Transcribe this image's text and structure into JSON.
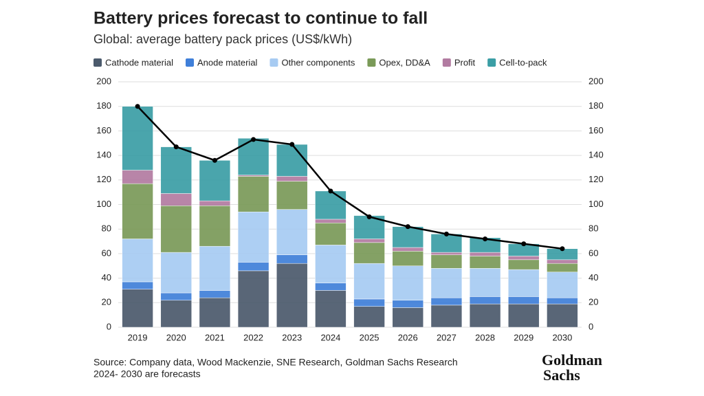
{
  "chart_data": {
    "type": "bar",
    "stacked": true,
    "title": "Battery prices forecast to continue to fall",
    "subtitle": "Global: average battery pack prices (US$/kWh)",
    "categories": [
      "2019",
      "2020",
      "2021",
      "2022",
      "2023",
      "2024",
      "2025",
      "2026",
      "2027",
      "2028",
      "2029",
      "2030"
    ],
    "series": [
      {
        "name": "Cathode material",
        "color": "#4b5a6c",
        "values": [
          31,
          22,
          24,
          46,
          52,
          30,
          17,
          16,
          18,
          19,
          19,
          19
        ]
      },
      {
        "name": "Anode material",
        "color": "#3f7fd9",
        "values": [
          6,
          6,
          6,
          7,
          7,
          6,
          6,
          6,
          6,
          6,
          6,
          5
        ]
      },
      {
        "name": "Other components",
        "color": "#a7cbf2",
        "values": [
          35,
          33,
          36,
          41,
          37,
          31,
          29,
          28,
          24,
          23,
          22,
          21
        ]
      },
      {
        "name": "Opex, DD&A",
        "color": "#7a9a58",
        "values": [
          45,
          38,
          33,
          29,
          23,
          18,
          17,
          12,
          11,
          10,
          8,
          7
        ]
      },
      {
        "name": "Profit",
        "color": "#b27ba1",
        "values": [
          11,
          10,
          4,
          1,
          4,
          3,
          3,
          3,
          2,
          3,
          3,
          3
        ]
      },
      {
        "name": "Cell-to-pack",
        "color": "#3b9ea5",
        "values": [
          52,
          38,
          33,
          30,
          26,
          23,
          19,
          17,
          15,
          12,
          10,
          9
        ]
      }
    ],
    "line": {
      "axis": "y2",
      "color": "#000000",
      "values": [
        180,
        147,
        136,
        153,
        149,
        111,
        90,
        82,
        76,
        72,
        68,
        64
      ]
    },
    "ylim": [
      0,
      200
    ],
    "yticks": [
      0,
      20,
      40,
      60,
      80,
      100,
      120,
      140,
      160,
      180,
      200
    ],
    "y2lim": [
      0,
      200
    ],
    "y2ticks": [
      0,
      20,
      40,
      60,
      80,
      100,
      120,
      140,
      160,
      180,
      200
    ],
    "grid": true,
    "legend": "top",
    "source": "Source: Company data, Wood Mackenzie, SNE Research, Goldman Sachs Research",
    "note": "2024- 2030 are forecasts",
    "logo": [
      "Goldman",
      "Sachs"
    ]
  }
}
